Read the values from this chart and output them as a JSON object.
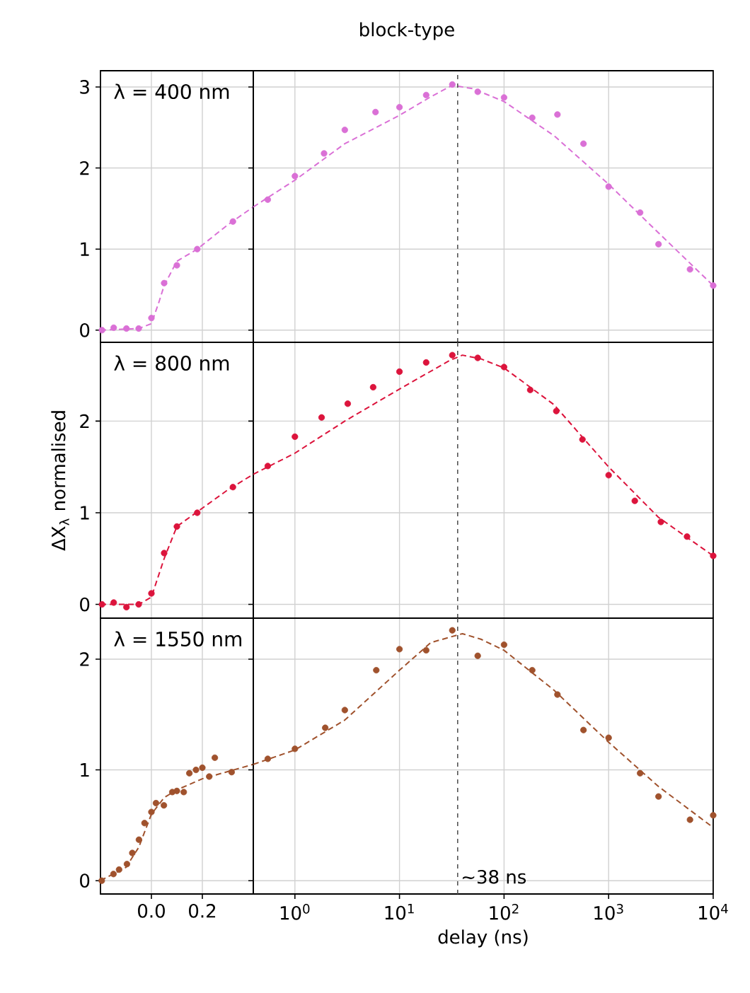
{
  "chart_data": [
    {
      "type": "scatter",
      "annotations": [
        "λ = 400 nm"
      ],
      "xlim": [
        -0.2,
        0.4
      ],
      "ylim": [
        -0.15,
        3.2
      ],
      "xticks": [
        {
          "value": 0,
          "label": null
        },
        {
          "value": 0.2,
          "label": null
        }
      ],
      "yticks": [
        0,
        1,
        2,
        3
      ],
      "grid": true,
      "marker": "circle",
      "tick_labels": "y",
      "series": [
        {
          "color": "#da70d6",
          "x": [
            -0.194,
            -0.148,
            -0.098,
            -0.05,
            0.0,
            0.05,
            0.1,
            0.18,
            0.32
          ],
          "values": [
            0.0,
            0.03,
            0.02,
            0.02,
            0.15,
            0.58,
            0.8,
            1.0,
            1.34
          ]
        },
        {
          "type": "line",
          "marker": "none",
          "line_style": "dashed",
          "color": "#da70d6",
          "x": [
            -0.2,
            -0.05,
            0.0,
            0.03,
            0.05,
            0.1,
            0.18,
            0.3,
            0.4
          ],
          "values": [
            0.0,
            0.02,
            0.08,
            0.35,
            0.55,
            0.85,
            1.0,
            1.3,
            1.52
          ]
        }
      ]
    },
    {
      "type": "scatter",
      "title": "block-type",
      "xlim": [
        0.4,
        10000
      ],
      "ylim": [
        -0.15,
        3.2
      ],
      "log": "x",
      "xticks": [
        {
          "value": 1,
          "label": null
        },
        {
          "value": 10,
          "label": null
        },
        {
          "value": 100,
          "label": null
        },
        {
          "value": 1000,
          "label": null
        },
        {
          "value": 10000,
          "label": null
        }
      ],
      "yticks": [
        0,
        1,
        2,
        3
      ],
      "grid": true,
      "marker": "circle",
      "tick_labels": false,
      "ref_lines": [
        {
          "axis": "x",
          "value": 36,
          "color": "#555555",
          "line_style": "dashed"
        }
      ],
      "series": [
        {
          "color": "#da70d6",
          "x": [
            0.55,
            1,
            1.9,
            3,
            5.9,
            10,
            18,
            32,
            56,
            100,
            186,
            324,
            575,
            1000,
            2000,
            3000,
            6000,
            10000
          ],
          "values": [
            1.61,
            1.9,
            2.18,
            2.47,
            2.69,
            2.75,
            2.9,
            3.03,
            2.94,
            2.87,
            2.62,
            2.66,
            2.3,
            1.77,
            1.45,
            1.06,
            0.75,
            0.55
          ]
        },
        {
          "type": "line",
          "marker": "none",
          "line_style": "dashed",
          "color": "#da70d6",
          "x": [
            0.4,
            1,
            3,
            10,
            20,
            32,
            50,
            100,
            300,
            1000,
            3000,
            10000
          ],
          "values": [
            1.52,
            1.85,
            2.3,
            2.65,
            2.88,
            3.02,
            2.98,
            2.82,
            2.4,
            1.8,
            1.2,
            0.55
          ]
        }
      ]
    },
    {
      "type": "scatter",
      "ylabel": "ΔX$_{λ}$ normalised",
      "annotations": [
        "λ = 800 nm"
      ],
      "xlim": [
        -0.2,
        0.4
      ],
      "ylim": [
        -0.15,
        2.86
      ],
      "xticks": [
        {
          "value": 0,
          "label": null
        },
        {
          "value": 0.2,
          "label": null
        }
      ],
      "yticks": [
        0,
        1,
        2
      ],
      "grid": true,
      "marker": "circle",
      "tick_labels": "y",
      "series": [
        {
          "color": "#dc143c",
          "x": [
            -0.194,
            -0.148,
            -0.098,
            -0.05,
            0.0,
            0.05,
            0.1,
            0.18,
            0.32
          ],
          "values": [
            0.0,
            0.02,
            -0.03,
            0.0,
            0.12,
            0.56,
            0.85,
            1.0,
            1.28
          ]
        },
        {
          "type": "line",
          "marker": "none",
          "line_style": "dashed",
          "color": "#dc143c",
          "x": [
            -0.2,
            -0.05,
            0.0,
            0.05,
            0.1,
            0.2,
            0.3,
            0.4
          ],
          "values": [
            0.0,
            0.0,
            0.08,
            0.5,
            0.85,
            1.05,
            1.25,
            1.42
          ]
        }
      ]
    },
    {
      "type": "scatter",
      "xlim": [
        0.4,
        10000
      ],
      "ylim": [
        -0.15,
        2.86
      ],
      "log": "x",
      "xticks": [
        {
          "value": 1,
          "label": null
        },
        {
          "value": 10,
          "label": null
        },
        {
          "value": 100,
          "label": null
        },
        {
          "value": 1000,
          "label": null
        },
        {
          "value": 10000,
          "label": null
        }
      ],
      "yticks": [
        0,
        1,
        2
      ],
      "grid": true,
      "marker": "circle",
      "tick_labels": false,
      "ref_lines": [
        {
          "axis": "x",
          "value": 36,
          "color": "#555555",
          "line_style": "dashed"
        }
      ],
      "series": [
        {
          "color": "#dc143c",
          "x": [
            0.55,
            1,
            1.8,
            3.2,
            5.6,
            10,
            18,
            32,
            56,
            100,
            178,
            316,
            562,
            1000,
            1780,
            3160,
            5620,
            10000
          ],
          "values": [
            1.51,
            1.83,
            2.04,
            2.19,
            2.37,
            2.54,
            2.64,
            2.72,
            2.69,
            2.59,
            2.34,
            2.11,
            1.8,
            1.41,
            1.13,
            0.9,
            0.74,
            0.53
          ]
        },
        {
          "type": "line",
          "marker": "none",
          "line_style": "dashed",
          "color": "#dc143c",
          "x": [
            0.4,
            1,
            3,
            10,
            30,
            40,
            60,
            100,
            300,
            1000,
            3000,
            10000
          ],
          "values": [
            1.42,
            1.65,
            2.0,
            2.35,
            2.66,
            2.72,
            2.68,
            2.58,
            2.18,
            1.5,
            0.95,
            0.53
          ]
        }
      ]
    },
    {
      "type": "scatter",
      "annotations": [
        "λ = 1550 nm"
      ],
      "xlim": [
        -0.2,
        0.4
      ],
      "ylim": [
        -0.12,
        2.37
      ],
      "xticks": [
        {
          "value": 0,
          "label": "0.0"
        },
        {
          "value": 0.2,
          "label": "0.2"
        }
      ],
      "yticks": [
        0,
        1,
        2
      ],
      "grid": true,
      "marker": "circle",
      "series": [
        {
          "color": "#a0522d",
          "x": [
            -0.195,
            -0.149,
            -0.127,
            -0.096,
            -0.075,
            -0.049,
            -0.027,
            0.0,
            0.018,
            0.049,
            0.082,
            0.1,
            0.127,
            0.149,
            0.175,
            0.2,
            0.227,
            0.249,
            0.315
          ],
          "values": [
            0.0,
            0.06,
            0.1,
            0.15,
            0.25,
            0.37,
            0.52,
            0.62,
            0.7,
            0.68,
            0.8,
            0.81,
            0.8,
            0.97,
            1.0,
            1.02,
            0.94,
            1.11,
            0.98
          ]
        },
        {
          "type": "line",
          "marker": "none",
          "line_style": "dashed",
          "color": "#a0522d",
          "x": [
            -0.2,
            -0.1,
            -0.05,
            0.0,
            0.05,
            0.1,
            0.2,
            0.4
          ],
          "values": [
            0.0,
            0.12,
            0.3,
            0.6,
            0.75,
            0.82,
            0.92,
            1.05
          ]
        }
      ]
    },
    {
      "type": "scatter",
      "xlabel": "delay (ns)",
      "xlim": [
        0.4,
        10000
      ],
      "ylim": [
        -0.12,
        2.37
      ],
      "log": "x",
      "xticks": [
        {
          "value": 1,
          "label": "10$^{0}$"
        },
        {
          "value": 10,
          "label": "10$^{1}$"
        },
        {
          "value": 100,
          "label": "10$^{2}$"
        },
        {
          "value": 1000,
          "label": "10$^{3}$"
        },
        {
          "value": 10000,
          "label": "10$^{4}$"
        }
      ],
      "yticks": [
        0,
        1,
        2
      ],
      "grid": true,
      "marker": "circle",
      "tick_labels": "x",
      "ref_lines": [
        {
          "axis": "x",
          "value": 36,
          "label": "~38 ns",
          "color": "#555555",
          "line_style": "dashed"
        }
      ],
      "series": [
        {
          "color": "#a0522d",
          "x": [
            0.55,
            1,
            1.95,
            3,
            6,
            10,
            18,
            32,
            56,
            100,
            186,
            324,
            575,
            1000,
            2000,
            3000,
            6000,
            10000
          ],
          "values": [
            1.1,
            1.19,
            1.38,
            1.54,
            1.9,
            2.09,
            2.08,
            2.26,
            2.03,
            2.13,
            1.9,
            1.68,
            1.36,
            1.29,
            0.97,
            0.76,
            0.55,
            0.59
          ]
        },
        {
          "type": "line",
          "marker": "none",
          "line_style": "dashed",
          "color": "#a0522d",
          "x": [
            0.4,
            1,
            3,
            10,
            20,
            40,
            60,
            100,
            300,
            1000,
            3000,
            10000
          ],
          "values": [
            1.05,
            1.18,
            1.45,
            1.9,
            2.15,
            2.23,
            2.18,
            2.08,
            1.72,
            1.25,
            0.85,
            0.48
          ]
        }
      ]
    }
  ]
}
